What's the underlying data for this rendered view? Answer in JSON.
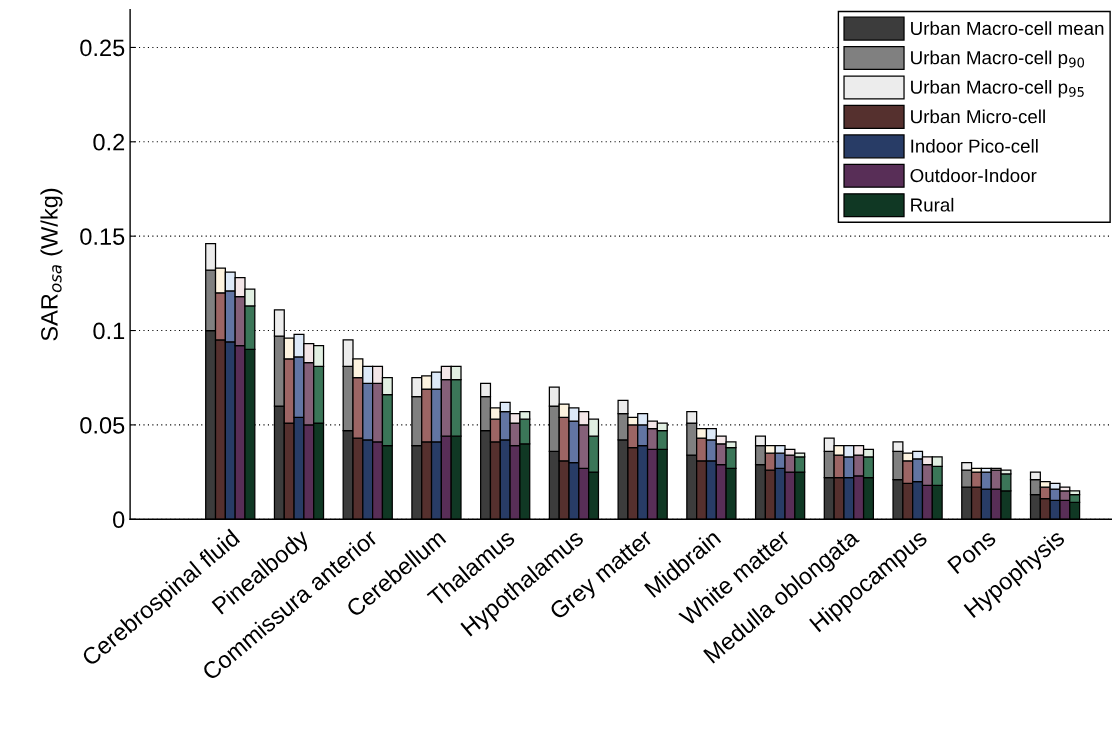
{
  "chart_data": {
    "type": "bar",
    "stacked": true,
    "ylabel": "SAR$_{osa}$ (W/kg)",
    "categories": [
      null,
      null,
      "Cerebrospinal fluid",
      null,
      null,
      null,
      null,
      null,
      null,
      "Pinealbody",
      null,
      null,
      null,
      null,
      null,
      null,
      "Commissura anterior",
      null,
      null,
      null,
      null,
      null,
      null,
      "Cerebellum",
      null,
      null,
      null,
      null,
      null,
      null,
      "Thalamus",
      null,
      null,
      null,
      null,
      null,
      null,
      "Hypothalamus",
      null,
      null,
      null,
      null,
      null,
      null,
      "Grey matter",
      null,
      null,
      null,
      null,
      null,
      null,
      "Midbrain",
      null,
      null,
      null,
      null,
      null,
      null,
      "White matter",
      null,
      null,
      null,
      null,
      null,
      null,
      "Medulla oblongata",
      null,
      null,
      null,
      null,
      null,
      null,
      "Hippocampus",
      null,
      null,
      null,
      null,
      null,
      null,
      "Pons",
      null,
      null,
      null,
      null,
      null,
      null,
      "Hypophysis",
      null,
      null
    ],
    "ylim": [
      0,
      0.27
    ],
    "yticks": [
      0,
      0.05,
      0.1,
      0.15,
      0.2,
      0.25
    ],
    "grid": "y",
    "legend": "top right",
    "series": [
      {
        "name": "Urban Macro-cell mean",
        "color": "#3c3c3c",
        "values": [
          0.1,
          null,
          null,
          null,
          null,
          null,
          null,
          0.06,
          null,
          null,
          null,
          null,
          null,
          null,
          0.047,
          null,
          null,
          null,
          null,
          null,
          null,
          0.039,
          null,
          null,
          null,
          null,
          null,
          null,
          0.047,
          null,
          null,
          null,
          null,
          null,
          null,
          0.036,
          null,
          null,
          null,
          null,
          null,
          null,
          0.042,
          null,
          null,
          null,
          null,
          null,
          null,
          0.034,
          null,
          null,
          null,
          null,
          null,
          null,
          0.029,
          null,
          null,
          null,
          null,
          null,
          null,
          0.022,
          null,
          null,
          null,
          null,
          null,
          null,
          0.021,
          null,
          null,
          null,
          null,
          null,
          null,
          0.017,
          null,
          null,
          null,
          null,
          null,
          null,
          0.013,
          null,
          null,
          null,
          null
        ]
      },
      {
        "name": "Urban Macro-cell p$_{90}$",
        "color": "#808080",
        "values": [
          0.032,
          null,
          null,
          null,
          null,
          null,
          null,
          0.037,
          null,
          null,
          null,
          null,
          null,
          null,
          0.034,
          null,
          null,
          null,
          null,
          null,
          null,
          0.026,
          null,
          null,
          null,
          null,
          null,
          null,
          0.018,
          null,
          null,
          null,
          null,
          null,
          null,
          0.024,
          null,
          null,
          null,
          null,
          null,
          null,
          0.014,
          null,
          null,
          null,
          null,
          null,
          null,
          0.017,
          null,
          null,
          null,
          null,
          null,
          null,
          0.01,
          null,
          null,
          null,
          null,
          null,
          null,
          0.014,
          null,
          null,
          null,
          null,
          null,
          null,
          0.015,
          null,
          null,
          null,
          null,
          null,
          null,
          0.009,
          null,
          null,
          null,
          null,
          null,
          null,
          0.008,
          null,
          null,
          null,
          null
        ]
      },
      {
        "name": "Urban Macro-cell p$_{95}$",
        "color": "#ececec",
        "values": [
          0.014,
          null,
          null,
          null,
          null,
          null,
          null,
          0.014,
          null,
          null,
          null,
          null,
          null,
          null,
          0.014,
          null,
          null,
          null,
          null,
          null,
          null,
          0.01,
          null,
          null,
          null,
          null,
          null,
          null,
          0.007,
          null,
          null,
          null,
          null,
          null,
          null,
          0.01,
          null,
          null,
          null,
          null,
          null,
          null,
          0.007,
          null,
          null,
          null,
          null,
          null,
          null,
          0.006,
          null,
          null,
          null,
          null,
          null,
          null,
          0.005,
          null,
          null,
          null,
          null,
          null,
          null,
          0.007,
          null,
          null,
          null,
          null,
          null,
          null,
          0.005,
          null,
          null,
          null,
          null,
          null,
          null,
          0.004,
          null,
          null,
          null,
          null,
          null,
          null,
          0.004,
          null,
          null,
          null,
          null
        ]
      },
      {
        "name": "Urban Micro-cell",
        "color": "#55302e",
        "values": [
          null,
          0.095,
          null,
          null,
          null,
          null,
          null,
          null,
          0.051,
          null,
          null,
          null,
          null,
          null,
          null,
          0.043,
          null,
          null,
          null,
          null,
          null,
          null,
          0.041,
          null,
          null,
          null,
          null,
          null,
          null,
          0.041,
          null,
          null,
          null,
          null,
          null,
          null,
          0.031,
          null,
          null,
          null,
          null,
          null,
          null,
          0.038,
          null,
          null,
          null,
          null,
          null,
          null,
          0.031,
          null,
          null,
          null,
          null,
          null,
          null,
          0.026,
          null,
          null,
          null,
          null,
          null,
          null,
          0.022,
          null,
          null,
          null,
          null,
          null,
          null,
          0.019,
          null,
          null,
          null,
          null,
          null,
          null,
          0.017,
          null,
          null,
          null,
          null,
          null,
          null,
          0.011,
          null,
          null,
          null
        ]
      },
      {
        "color": "#9c6564",
        "values": [
          null,
          0.025,
          null,
          null,
          null,
          null,
          null,
          null,
          0.034,
          null,
          null,
          null,
          null,
          null,
          null,
          0.032,
          null,
          null,
          null,
          null,
          null,
          null,
          0.028,
          null,
          null,
          null,
          null,
          null,
          null,
          0.012,
          null,
          null,
          null,
          null,
          null,
          null,
          0.023,
          null,
          null,
          null,
          null,
          null,
          null,
          0.012,
          null,
          null,
          null,
          null,
          null,
          null,
          0.012,
          null,
          null,
          null,
          null,
          null,
          null,
          0.009,
          null,
          null,
          null,
          null,
          null,
          null,
          0.012,
          null,
          null,
          null,
          null,
          null,
          null,
          0.012,
          null,
          null,
          null,
          null,
          null,
          null,
          0.008,
          null,
          null,
          null,
          null,
          null,
          null,
          0.006,
          null,
          null,
          null
        ]
      },
      {
        "color": "#fdf3df",
        "values": [
          null,
          0.013,
          null,
          null,
          null,
          null,
          null,
          null,
          0.011,
          null,
          null,
          null,
          null,
          null,
          null,
          0.01,
          null,
          null,
          null,
          null,
          null,
          null,
          0.007,
          null,
          null,
          null,
          null,
          null,
          null,
          0.006,
          null,
          null,
          null,
          null,
          null,
          null,
          0.007,
          null,
          null,
          null,
          null,
          null,
          null,
          0.004,
          null,
          null,
          null,
          null,
          null,
          null,
          0.005,
          null,
          null,
          null,
          null,
          null,
          null,
          0.004,
          null,
          null,
          null,
          null,
          null,
          null,
          0.005,
          null,
          null,
          null,
          null,
          null,
          null,
          0.004,
          null,
          null,
          null,
          null,
          null,
          null,
          0.002,
          null,
          null,
          null,
          null,
          null,
          null,
          0.003,
          null,
          null,
          null
        ]
      },
      {
        "name": "Indoor Pico-cell",
        "color": "#283c66",
        "values": [
          null,
          null,
          0.094,
          null,
          null,
          null,
          null,
          null,
          null,
          0.054,
          null,
          null,
          null,
          null,
          null,
          null,
          0.042,
          null,
          null,
          null,
          null,
          null,
          null,
          0.041,
          null,
          null,
          null,
          null,
          null,
          null,
          0.042,
          null,
          null,
          null,
          null,
          null,
          null,
          0.03,
          null,
          null,
          null,
          null,
          null,
          null,
          0.039,
          null,
          null,
          null,
          null,
          null,
          null,
          0.031,
          null,
          null,
          null,
          null,
          null,
          null,
          0.027,
          null,
          null,
          null,
          null,
          null,
          null,
          0.022,
          null,
          null,
          null,
          null,
          null,
          null,
          0.02,
          null,
          null,
          null,
          null,
          null,
          null,
          0.016,
          null,
          null,
          null,
          null,
          null,
          null,
          0.01,
          null,
          null
        ]
      },
      {
        "color": "#6275a3",
        "values": [
          null,
          null,
          0.027,
          null,
          null,
          null,
          null,
          null,
          null,
          0.032,
          null,
          null,
          null,
          null,
          null,
          null,
          0.03,
          null,
          null,
          null,
          null,
          null,
          null,
          0.028,
          null,
          null,
          null,
          null,
          null,
          null,
          0.015,
          null,
          null,
          null,
          null,
          null,
          null,
          0.022,
          null,
          null,
          null,
          null,
          null,
          null,
          0.011,
          null,
          null,
          null,
          null,
          null,
          null,
          0.011,
          null,
          null,
          null,
          null,
          null,
          null,
          0.008,
          null,
          null,
          null,
          null,
          null,
          null,
          0.011,
          null,
          null,
          null,
          null,
          null,
          null,
          0.012,
          null,
          null,
          null,
          null,
          null,
          null,
          0.009,
          null,
          null,
          null,
          null,
          null,
          null,
          0.006,
          null,
          null
        ]
      },
      {
        "color": "#dde9f8",
        "values": [
          null,
          null,
          0.01,
          null,
          null,
          null,
          null,
          null,
          null,
          0.012,
          null,
          null,
          null,
          null,
          null,
          null,
          0.009,
          null,
          null,
          null,
          null,
          null,
          null,
          0.009,
          null,
          null,
          null,
          null,
          null,
          null,
          0.005,
          null,
          null,
          null,
          null,
          null,
          null,
          0.007,
          null,
          null,
          null,
          null,
          null,
          null,
          0.006,
          null,
          null,
          null,
          null,
          null,
          null,
          0.006,
          null,
          null,
          null,
          null,
          null,
          null,
          0.004,
          null,
          null,
          null,
          null,
          null,
          null,
          0.006,
          null,
          null,
          null,
          null,
          null,
          null,
          0.004,
          null,
          null,
          null,
          null,
          null,
          null,
          0.002,
          null,
          null,
          null,
          null,
          null,
          null,
          0.003,
          null,
          null
        ]
      },
      {
        "name": "Outdoor-Indoor",
        "color": "#582e57",
        "values": [
          null,
          null,
          null,
          0.092,
          null,
          null,
          null,
          null,
          null,
          null,
          0.05,
          null,
          null,
          null,
          null,
          null,
          null,
          0.041,
          null,
          null,
          null,
          null,
          null,
          null,
          0.044,
          null,
          null,
          null,
          null,
          null,
          null,
          0.039,
          null,
          null,
          null,
          null,
          null,
          null,
          0.027,
          null,
          null,
          null,
          null,
          null,
          null,
          0.037,
          null,
          null,
          null,
          null,
          null,
          null,
          0.029,
          null,
          null,
          null,
          null,
          null,
          null,
          0.025,
          null,
          null,
          null,
          null,
          null,
          null,
          0.023,
          null,
          null,
          null,
          null,
          null,
          null,
          0.018,
          null,
          null,
          null,
          null,
          null,
          null,
          0.016,
          null,
          null,
          null,
          null,
          null,
          null,
          0.01,
          null
        ]
      },
      {
        "color": "#856079",
        "values": [
          null,
          null,
          null,
          0.026,
          null,
          null,
          null,
          null,
          null,
          null,
          0.033,
          null,
          null,
          null,
          null,
          null,
          null,
          0.031,
          null,
          null,
          null,
          null,
          null,
          null,
          0.03,
          null,
          null,
          null,
          null,
          null,
          null,
          0.012,
          null,
          null,
          null,
          null,
          null,
          null,
          0.023,
          null,
          null,
          null,
          null,
          null,
          null,
          0.011,
          null,
          null,
          null,
          null,
          null,
          null,
          0.011,
          null,
          null,
          null,
          null,
          null,
          null,
          0.009,
          null,
          null,
          null,
          null,
          null,
          null,
          0.011,
          null,
          null,
          null,
          null,
          null,
          null,
          0.011,
          null,
          null,
          null,
          null,
          null,
          null,
          0.01,
          null,
          null,
          null,
          null,
          null,
          null,
          0.005,
          null
        ]
      },
      {
        "color": "#f3e6e8",
        "values": [
          null,
          null,
          null,
          0.01,
          null,
          null,
          null,
          null,
          null,
          null,
          0.01,
          null,
          null,
          null,
          null,
          null,
          null,
          0.009,
          null,
          null,
          null,
          null,
          null,
          null,
          0.007,
          null,
          null,
          null,
          null,
          null,
          null,
          0.005,
          null,
          null,
          null,
          null,
          null,
          null,
          0.007,
          null,
          null,
          null,
          null,
          null,
          null,
          0.004,
          null,
          null,
          null,
          null,
          null,
          null,
          0.004,
          null,
          null,
          null,
          null,
          null,
          null,
          0.003,
          null,
          null,
          null,
          null,
          null,
          null,
          0.005,
          null,
          null,
          null,
          null,
          null,
          null,
          0.004,
          null,
          null,
          null,
          null,
          null,
          null,
          0.001,
          null,
          null,
          null,
          null,
          null,
          null,
          0.002,
          null
        ]
      },
      {
        "name": "Rural",
        "color": "#103824",
        "values": [
          null,
          null,
          null,
          null,
          0.09,
          null,
          null,
          null,
          null,
          null,
          null,
          0.051,
          null,
          null,
          null,
          null,
          null,
          null,
          0.039,
          null,
          null,
          null,
          null,
          null,
          null,
          0.044,
          null,
          null,
          null,
          null,
          null,
          null,
          0.04,
          null,
          null,
          null,
          null,
          null,
          null,
          0.025,
          null,
          null,
          null,
          null,
          null,
          null,
          0.037,
          null,
          null,
          null,
          null,
          null,
          null,
          0.027,
          null,
          null,
          null,
          null,
          null,
          null,
          0.025,
          null,
          null,
          null,
          null,
          null,
          null,
          0.022,
          null,
          null,
          null,
          null,
          null,
          null,
          0.018,
          null,
          null,
          null,
          null,
          null,
          null,
          0.015,
          null,
          null,
          null,
          null,
          null,
          null,
          0.009
        ]
      },
      {
        "color": "#3b7658",
        "values": [
          null,
          null,
          null,
          null,
          0.023,
          null,
          null,
          null,
          null,
          null,
          null,
          0.03,
          null,
          null,
          null,
          null,
          null,
          null,
          0.027,
          null,
          null,
          null,
          null,
          null,
          null,
          0.03,
          null,
          null,
          null,
          null,
          null,
          null,
          0.013,
          null,
          null,
          null,
          null,
          null,
          null,
          0.019,
          null,
          null,
          null,
          null,
          null,
          null,
          0.01,
          null,
          null,
          null,
          null,
          null,
          null,
          0.011,
          null,
          null,
          null,
          null,
          null,
          null,
          0.008,
          null,
          null,
          null,
          null,
          null,
          null,
          0.011,
          null,
          null,
          null,
          null,
          null,
          null,
          0.01,
          null,
          null,
          null,
          null,
          null,
          null,
          0.009,
          null,
          null,
          null,
          null,
          null,
          null,
          0.004
        ]
      },
      {
        "color": "#e1efe2",
        "values": [
          null,
          null,
          null,
          null,
          0.009,
          null,
          null,
          null,
          null,
          null,
          null,
          0.011,
          null,
          null,
          null,
          null,
          null,
          null,
          0.009,
          null,
          null,
          null,
          null,
          null,
          null,
          0.007,
          null,
          null,
          null,
          null,
          null,
          null,
          0.004,
          null,
          null,
          null,
          null,
          null,
          null,
          0.009,
          null,
          null,
          null,
          null,
          null,
          null,
          0.004,
          null,
          null,
          null,
          null,
          null,
          null,
          0.003,
          null,
          null,
          null,
          null,
          null,
          null,
          0.002,
          null,
          null,
          null,
          null,
          null,
          null,
          0.004,
          null,
          null,
          null,
          null,
          null,
          null,
          0.005,
          null,
          null,
          null,
          null,
          null,
          null,
          0.002,
          null,
          null,
          null,
          null,
          null,
          null,
          0.002
        ]
      }
    ]
  }
}
